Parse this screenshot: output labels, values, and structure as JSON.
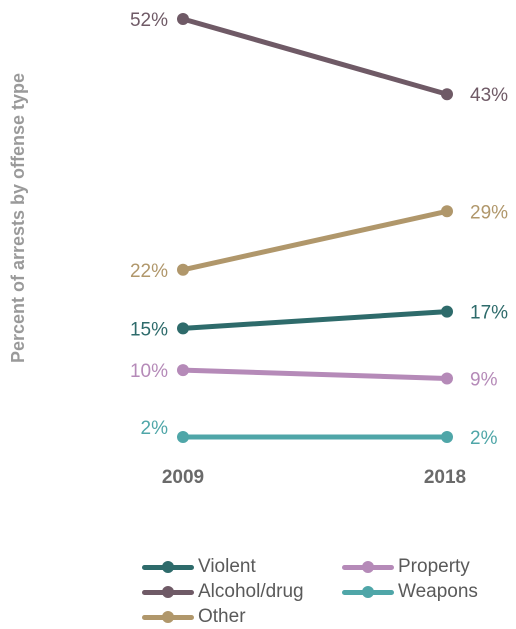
{
  "chart_data": {
    "type": "line",
    "ylabel": "Percent of arrests by offense type",
    "categories": [
      "2009",
      "2018"
    ],
    "ylim": [
      0,
      55
    ],
    "grid": false,
    "legend_position": "bottom",
    "series": [
      {
        "name": "Violent",
        "values": [
          15,
          17
        ],
        "labels": [
          "15%",
          "17%"
        ],
        "color": "#2e6b6b"
      },
      {
        "name": "Alcohol/drug",
        "values": [
          52,
          43
        ],
        "labels": [
          "52%",
          "43%"
        ],
        "color": "#6f5a66"
      },
      {
        "name": "Other",
        "values": [
          22,
          29
        ],
        "labels": [
          "22%",
          "29%"
        ],
        "color": "#b0976b"
      },
      {
        "name": "Property",
        "values": [
          10,
          9
        ],
        "labels": [
          "10%",
          "9%"
        ],
        "color": "#b58ab8"
      },
      {
        "name": "Weapons",
        "values": [
          2,
          2
        ],
        "labels": [
          "2%",
          "2%"
        ],
        "color": "#4fa6a8"
      }
    ]
  },
  "legend": {
    "items": [
      {
        "label": "Violent",
        "color": "#2e6b6b"
      },
      {
        "label": "Property",
        "color": "#b58ab8"
      },
      {
        "label": "Alcohol/drug",
        "color": "#6f5a66"
      },
      {
        "label": "Weapons",
        "color": "#4fa6a8"
      },
      {
        "label": "Other",
        "color": "#b0976b"
      }
    ]
  }
}
